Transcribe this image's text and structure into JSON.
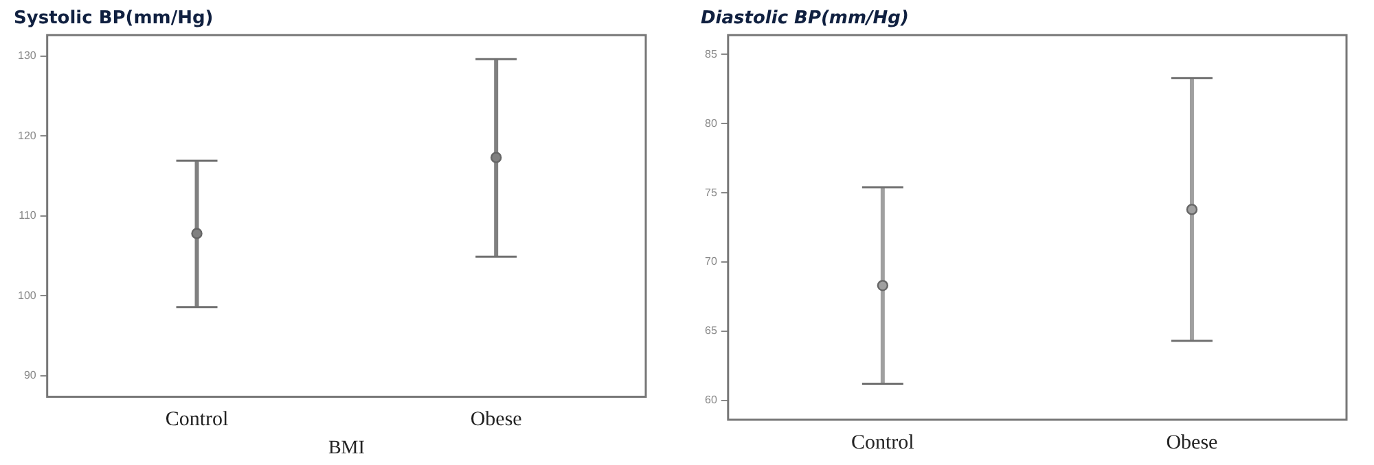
{
  "chart_data": [
    {
      "type": "scatter",
      "title": "Systolic BP(mm/Hg)",
      "xlabel": "BMI",
      "categories": [
        "Control",
        "Obese"
      ],
      "values": [
        107.8,
        117.3
      ],
      "errors": [
        [
          98.6,
          116.9
        ],
        [
          104.9,
          129.6
        ]
      ],
      "color": "#808080",
      "marker": "circle",
      "ylim": [
        87.4,
        132.6
      ],
      "yticks": [
        90,
        100,
        110,
        120,
        130
      ],
      "grid": false,
      "legend": false
    },
    {
      "type": "scatter",
      "title": "Diastolic BP(mm/Hg)",
      "categories": [
        "Control",
        "Obese"
      ],
      "values": [
        68.3,
        73.8
      ],
      "errors": [
        [
          61.2,
          75.4
        ],
        [
          64.3,
          83.3
        ]
      ],
      "color": "#a0a0a0",
      "marker": "circle",
      "ylim": [
        58.6,
        86.4
      ],
      "yticks": [
        60,
        65,
        70,
        75,
        80,
        85
      ],
      "grid": false,
      "legend": false
    }
  ]
}
